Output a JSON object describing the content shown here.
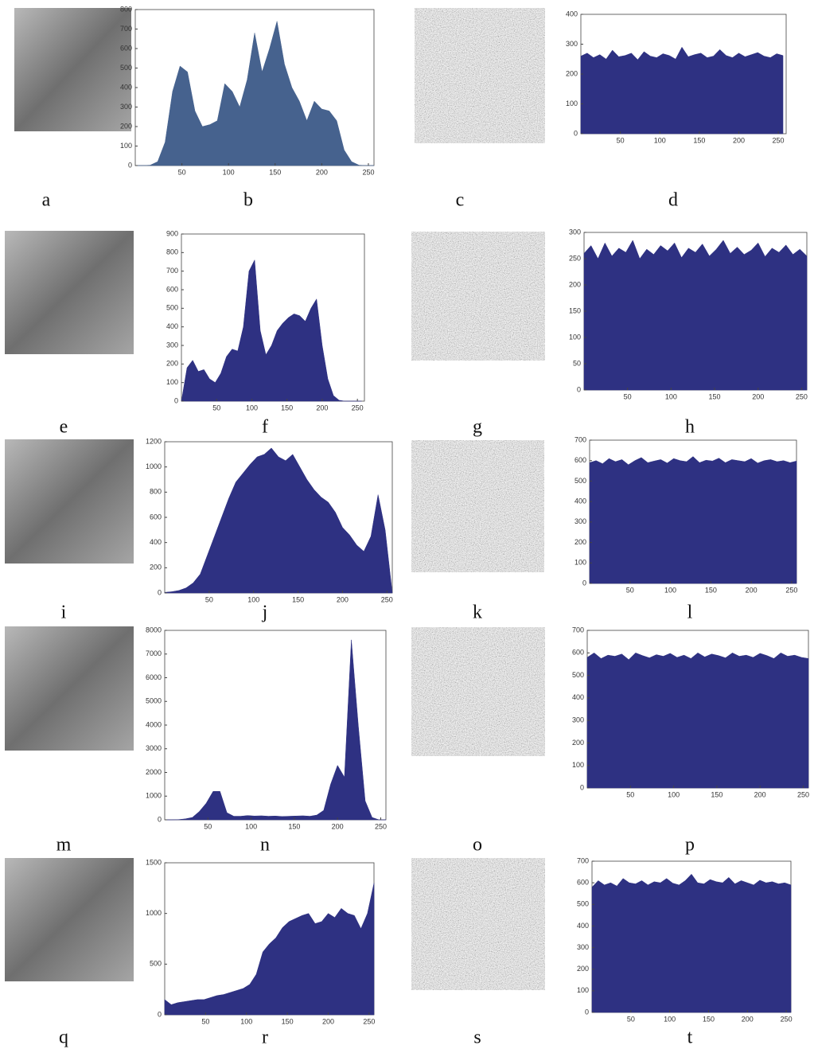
{
  "labels": [
    "a",
    "b",
    "c",
    "d",
    "e",
    "f",
    "g",
    "h",
    "i",
    "j",
    "k",
    "l",
    "m",
    "n",
    "o",
    "p",
    "q",
    "r",
    "s",
    "t"
  ],
  "chart_data": [
    {
      "type": "area",
      "color": "#46628e",
      "xlim": [
        0,
        256
      ],
      "ylim": [
        0,
        800
      ],
      "xticks": [
        50,
        100,
        150,
        200,
        250
      ],
      "yticks": [
        0,
        100,
        200,
        300,
        400,
        500,
        600,
        700,
        800
      ],
      "x": [
        0,
        8,
        16,
        24,
        32,
        40,
        48,
        56,
        64,
        72,
        80,
        88,
        96,
        104,
        112,
        120,
        128,
        136,
        144,
        152,
        160,
        168,
        176,
        184,
        192,
        200,
        208,
        216,
        224,
        232,
        240,
        248,
        256
      ],
      "values": [
        0,
        0,
        2,
        20,
        120,
        380,
        510,
        480,
        280,
        200,
        210,
        230,
        420,
        380,
        300,
        440,
        680,
        480,
        600,
        740,
        520,
        400,
        330,
        230,
        330,
        290,
        280,
        230,
        80,
        20,
        2,
        0,
        0
      ]
    },
    {
      "type": "area",
      "color": "#2e3182",
      "xlim": [
        0,
        260
      ],
      "ylim": [
        0,
        400
      ],
      "xticks": [
        50,
        100,
        150,
        200,
        250
      ],
      "yticks": [
        0,
        100,
        200,
        300,
        400
      ],
      "x": [
        0,
        8,
        16,
        24,
        32,
        40,
        48,
        56,
        64,
        72,
        80,
        88,
        96,
        104,
        112,
        120,
        128,
        136,
        144,
        152,
        160,
        168,
        176,
        184,
        192,
        200,
        208,
        216,
        224,
        232,
        240,
        248,
        256
      ],
      "values": [
        260,
        270,
        255,
        265,
        250,
        280,
        258,
        262,
        270,
        248,
        275,
        260,
        255,
        268,
        262,
        250,
        290,
        258,
        265,
        270,
        255,
        260,
        282,
        262,
        255,
        270,
        258,
        265,
        272,
        260,
        255,
        268,
        262
      ]
    },
    {
      "type": "area",
      "color": "#2e3182",
      "xlim": [
        0,
        260
      ],
      "ylim": [
        0,
        900
      ],
      "xticks": [
        50,
        100,
        150,
        200,
        250
      ],
      "yticks": [
        0,
        100,
        200,
        300,
        400,
        500,
        600,
        700,
        800,
        900
      ],
      "x": [
        0,
        8,
        16,
        24,
        32,
        40,
        48,
        56,
        64,
        72,
        80,
        88,
        96,
        104,
        112,
        120,
        128,
        136,
        144,
        152,
        160,
        168,
        176,
        184,
        192,
        200,
        208,
        216,
        224,
        232,
        240,
        248,
        256
      ],
      "values": [
        0,
        180,
        220,
        160,
        170,
        120,
        100,
        150,
        240,
        280,
        270,
        400,
        700,
        760,
        380,
        250,
        300,
        380,
        420,
        450,
        470,
        460,
        430,
        500,
        550,
        300,
        120,
        30,
        5,
        0,
        0,
        0,
        0
      ]
    },
    {
      "type": "area",
      "color": "#2e3182",
      "xlim": [
        0,
        256
      ],
      "ylim": [
        0,
        300
      ],
      "xticks": [
        50,
        100,
        150,
        200,
        250
      ],
      "yticks": [
        0,
        50,
        100,
        150,
        200,
        250,
        300
      ],
      "x": [
        0,
        8,
        16,
        24,
        32,
        40,
        48,
        56,
        64,
        72,
        80,
        88,
        96,
        104,
        112,
        120,
        128,
        136,
        144,
        152,
        160,
        168,
        176,
        184,
        192,
        200,
        208,
        216,
        224,
        232,
        240,
        248,
        256
      ],
      "values": [
        260,
        275,
        250,
        280,
        255,
        270,
        262,
        285,
        250,
        268,
        258,
        275,
        265,
        280,
        252,
        270,
        262,
        278,
        255,
        268,
        285,
        260,
        272,
        258,
        266,
        280,
        254,
        270,
        262,
        276,
        258,
        268,
        255
      ]
    },
    {
      "type": "area",
      "color": "#2e3182",
      "xlim": [
        0,
        256
      ],
      "ylim": [
        0,
        1200
      ],
      "xticks": [
        50,
        100,
        150,
        200,
        250
      ],
      "yticks": [
        0,
        200,
        400,
        600,
        800,
        1000,
        1200
      ],
      "x": [
        0,
        8,
        16,
        24,
        32,
        40,
        48,
        56,
        64,
        72,
        80,
        88,
        96,
        104,
        112,
        120,
        128,
        136,
        144,
        152,
        160,
        168,
        176,
        184,
        192,
        200,
        208,
        216,
        224,
        232,
        240,
        248,
        256
      ],
      "values": [
        5,
        10,
        20,
        40,
        80,
        150,
        300,
        450,
        600,
        750,
        880,
        950,
        1020,
        1080,
        1100,
        1150,
        1080,
        1050,
        1100,
        1000,
        900,
        820,
        760,
        720,
        640,
        520,
        460,
        380,
        330,
        450,
        780,
        500,
        0
      ]
    },
    {
      "type": "area",
      "color": "#2e3182",
      "xlim": [
        0,
        256
      ],
      "ylim": [
        0,
        700
      ],
      "xticks": [
        50,
        100,
        150,
        200,
        250
      ],
      "yticks": [
        0,
        100,
        200,
        300,
        400,
        500,
        600,
        700
      ],
      "x": [
        0,
        8,
        16,
        24,
        32,
        40,
        48,
        56,
        64,
        72,
        80,
        88,
        96,
        104,
        112,
        120,
        128,
        136,
        144,
        152,
        160,
        168,
        176,
        184,
        192,
        200,
        208,
        216,
        224,
        232,
        240,
        248,
        256
      ],
      "values": [
        590,
        600,
        585,
        610,
        595,
        605,
        580,
        600,
        615,
        590,
        598,
        605,
        588,
        610,
        600,
        595,
        620,
        590,
        602,
        598,
        612,
        590,
        605,
        600,
        595,
        610,
        588,
        600,
        605,
        595,
        600,
        590,
        598
      ]
    },
    {
      "type": "area",
      "color": "#2e3182",
      "xlim": [
        0,
        256
      ],
      "ylim": [
        0,
        8000
      ],
      "xticks": [
        50,
        100,
        150,
        200,
        250
      ],
      "yticks": [
        0,
        1000,
        2000,
        3000,
        4000,
        5000,
        6000,
        7000,
        8000
      ],
      "x": [
        0,
        8,
        16,
        24,
        32,
        40,
        48,
        56,
        64,
        72,
        80,
        88,
        96,
        104,
        112,
        120,
        128,
        136,
        144,
        152,
        160,
        168,
        176,
        184,
        192,
        200,
        208,
        216,
        224,
        232,
        240,
        248,
        256
      ],
      "values": [
        0,
        0,
        10,
        40,
        100,
        350,
        700,
        1200,
        1200,
        300,
        150,
        150,
        180,
        160,
        170,
        150,
        160,
        140,
        150,
        160,
        170,
        150,
        200,
        400,
        1500,
        2300,
        1800,
        7600,
        4000,
        800,
        100,
        0,
        0
      ]
    },
    {
      "type": "area",
      "color": "#2e3182",
      "xlim": [
        0,
        256
      ],
      "ylim": [
        0,
        700
      ],
      "xticks": [
        50,
        100,
        150,
        200,
        250
      ],
      "yticks": [
        0,
        100,
        200,
        300,
        400,
        500,
        600,
        700
      ],
      "x": [
        0,
        8,
        16,
        24,
        32,
        40,
        48,
        56,
        64,
        72,
        80,
        88,
        96,
        104,
        112,
        120,
        128,
        136,
        144,
        152,
        160,
        168,
        176,
        184,
        192,
        200,
        208,
        216,
        224,
        232,
        240,
        248,
        256
      ],
      "values": [
        580,
        600,
        575,
        590,
        585,
        595,
        570,
        600,
        588,
        578,
        592,
        585,
        598,
        580,
        590,
        575,
        600,
        582,
        595,
        588,
        578,
        600,
        585,
        590,
        580,
        598,
        588,
        575,
        600,
        585,
        590,
        580,
        575
      ]
    },
    {
      "type": "area",
      "color": "#2e3182",
      "xlim": [
        0,
        256
      ],
      "ylim": [
        0,
        1500
      ],
      "xticks": [
        50,
        100,
        150,
        200,
        250
      ],
      "yticks": [
        0,
        500,
        1000,
        1500
      ],
      "x": [
        0,
        8,
        16,
        24,
        32,
        40,
        48,
        56,
        64,
        72,
        80,
        88,
        96,
        104,
        112,
        120,
        128,
        136,
        144,
        152,
        160,
        168,
        176,
        184,
        192,
        200,
        208,
        216,
        224,
        232,
        240,
        248,
        256
      ],
      "values": [
        150,
        100,
        120,
        130,
        140,
        150,
        150,
        170,
        190,
        200,
        220,
        240,
        260,
        300,
        400,
        620,
        700,
        760,
        860,
        920,
        950,
        980,
        1000,
        900,
        920,
        1000,
        960,
        1050,
        1000,
        980,
        850,
        1000,
        1300
      ]
    },
    {
      "type": "area",
      "color": "#2e3182",
      "xlim": [
        0,
        256
      ],
      "ylim": [
        0,
        700
      ],
      "xticks": [
        50,
        100,
        150,
        200,
        250
      ],
      "yticks": [
        0,
        100,
        200,
        300,
        400,
        500,
        600,
        700
      ],
      "x": [
        0,
        8,
        16,
        24,
        32,
        40,
        48,
        56,
        64,
        72,
        80,
        88,
        96,
        104,
        112,
        120,
        128,
        136,
        144,
        152,
        160,
        168,
        176,
        184,
        192,
        200,
        208,
        216,
        224,
        232,
        240,
        248,
        256
      ],
      "values": [
        580,
        610,
        590,
        600,
        585,
        620,
        600,
        595,
        610,
        590,
        605,
        600,
        620,
        598,
        590,
        610,
        640,
        600,
        595,
        615,
        605,
        600,
        625,
        595,
        610,
        600,
        590,
        612,
        600,
        605,
        595,
        600,
        590
      ]
    }
  ]
}
